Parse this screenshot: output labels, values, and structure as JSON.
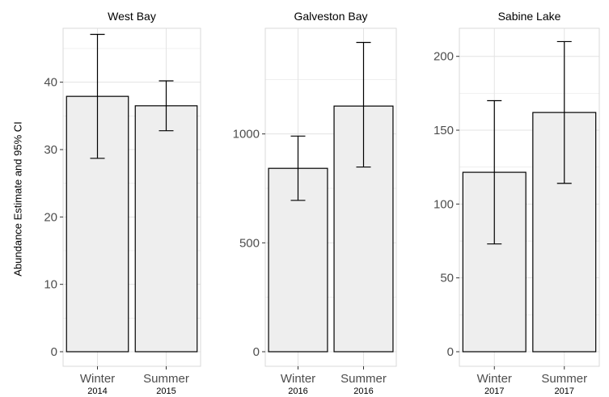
{
  "chart_data": [
    {
      "type": "bar",
      "title": "West Bay",
      "categories": [
        [
          "Winter",
          "2014"
        ],
        [
          "Summer",
          "2015"
        ]
      ],
      "values": [
        37.9,
        36.5
      ],
      "ci_low": [
        28.7,
        32.8
      ],
      "ci_high": [
        47.1,
        40.2
      ],
      "ylim": [
        0,
        48
      ],
      "yticks": [
        0,
        10,
        20,
        30,
        40
      ],
      "ylabel": "Abundance Estimate and 95% CI",
      "xlabel": "",
      "grid": true
    },
    {
      "type": "bar",
      "title": "Galveston Bay",
      "categories": [
        [
          "Winter",
          "2016"
        ],
        [
          "Summer",
          "2016"
        ]
      ],
      "values": [
        842,
        1128
      ],
      "ci_low": [
        695,
        848
      ],
      "ci_high": [
        990,
        1420
      ],
      "ylim": [
        0,
        1485
      ],
      "yticks": [
        0,
        500,
        1000
      ],
      "ylabel": "",
      "xlabel": "",
      "grid": true
    },
    {
      "type": "bar",
      "title": "Sabine Lake",
      "categories": [
        [
          "Winter",
          "2017"
        ],
        [
          "Summer",
          "2017"
        ]
      ],
      "values": [
        121.5,
        162
      ],
      "ci_low": [
        73,
        114
      ],
      "ci_high": [
        170,
        210
      ],
      "ylim": [
        0,
        219
      ],
      "yticks": [
        0,
        50,
        100,
        150,
        200
      ],
      "ylabel": "",
      "xlabel": "",
      "grid": true
    }
  ],
  "colors": {
    "bar_fill": "#eeeeee",
    "bar_stroke": "#000000",
    "grid": "#e3e3e3",
    "panel_border": "#d9d9d9",
    "tick_label": "#4d4d4d",
    "text": "#000000"
  }
}
